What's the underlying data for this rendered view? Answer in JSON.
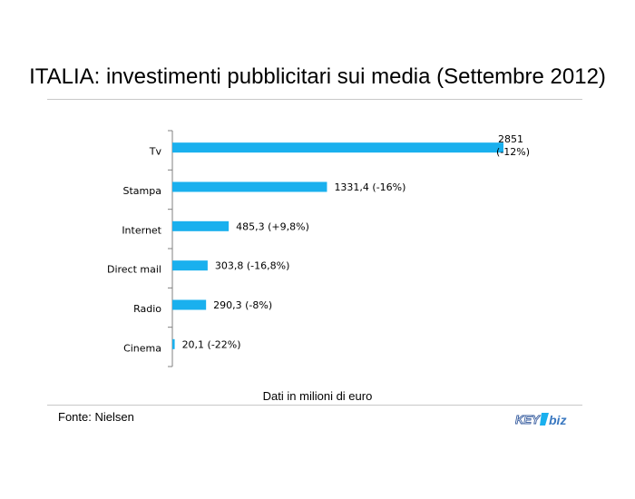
{
  "title": "ITALIA: investimenti pubblicitari sui media (Settembre 2012)",
  "caption": "Dati in milioni di euro",
  "source": "Fonte: Nielsen",
  "logo_text": "KEY4biz",
  "colors": {
    "bar": "#1ab0ee",
    "axis": "#808080",
    "rule": "#c8c8c8"
  },
  "chart_data": {
    "type": "bar",
    "orientation": "horizontal",
    "categories": [
      "Tv",
      "Stampa",
      "Internet",
      "Direct mail",
      "Radio",
      "Cinema"
    ],
    "values": [
      2851,
      1331.4,
      485.3,
      303.8,
      290.3,
      20.1
    ],
    "data_labels": [
      "2851\n(-12%)",
      "1331,4  (-16%)",
      "485,3 (+9,8%)",
      "303,8 (-16,8%)",
      "290,3 (-8%)",
      "20,1 (-22%)"
    ],
    "xlim": [
      0,
      2851
    ],
    "xlabel": "Dati in milioni di euro",
    "grid": false
  }
}
